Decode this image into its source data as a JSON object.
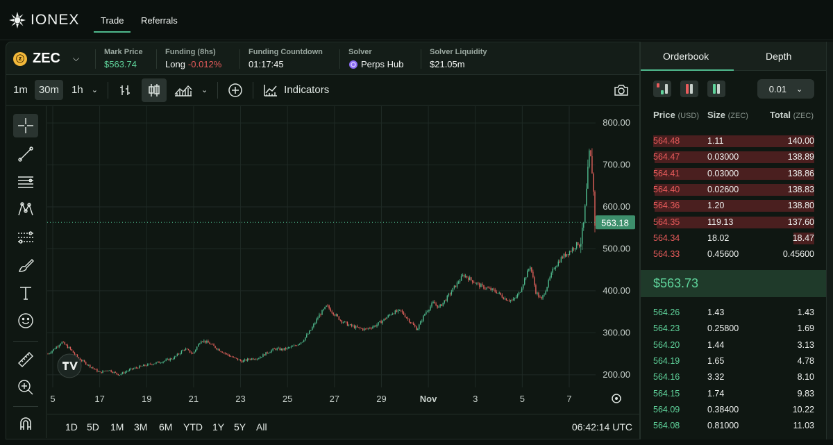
{
  "brand": {
    "name": "IONEX"
  },
  "nav": {
    "tabs": [
      {
        "label": "Trade"
      },
      {
        "label": "Referrals"
      }
    ]
  },
  "market": {
    "symbol": "ZEC",
    "icon": "zcash-coin-icon",
    "mark_price": {
      "label": "Mark Price",
      "value": "$563.74"
    },
    "funding": {
      "label": "Funding (8hs)",
      "side": "Long",
      "rate": "-0.012%"
    },
    "countdown": {
      "label": "Funding Countdown",
      "value": "01:17:45"
    },
    "solver": {
      "label": "Solver",
      "value": "Perps Hub"
    },
    "liquidity": {
      "label": "Solver Liquidity",
      "value": "$21.05m"
    }
  },
  "toolbar": {
    "intervals": [
      "1m",
      "30m",
      "1h"
    ],
    "selected_interval": "30m",
    "indicators_label": "Indicators",
    "icons": [
      "bar-chart-icon",
      "candlestick-icon",
      "area-chart-icon",
      "add-compare-icon",
      "indicators-icon",
      "camera-icon"
    ]
  },
  "drawing_tools": [
    "crosshair-icon",
    "trend-line-icon",
    "horizontal-lines-icon",
    "pattern-icon",
    "fib-icon",
    "brush-icon",
    "text-icon",
    "emoji-icon",
    "ruler-icon",
    "zoom-in-icon",
    "magnet-icon"
  ],
  "chart_data": {
    "type": "candlestick",
    "title": "",
    "y_ticks": [
      "800.00",
      "700.00",
      "600.00",
      "500.00",
      "400.00",
      "300.00",
      "200.00"
    ],
    "ylim": [
      160,
      830
    ],
    "x_ticks": [
      "5",
      "17",
      "19",
      "21",
      "23",
      "25",
      "27",
      "29",
      "Nov",
      "3",
      "5",
      "7"
    ],
    "last_price_label": "563.18",
    "last_price": 563.18,
    "grid": true,
    "trend_points": [
      [
        0,
        250
      ],
      [
        0.01,
        260
      ],
      [
        0.025,
        278
      ],
      [
        0.04,
        262
      ],
      [
        0.055,
        240
      ],
      [
        0.075,
        222
      ],
      [
        0.095,
        205
      ],
      [
        0.11,
        212
      ],
      [
        0.13,
        200
      ],
      [
        0.15,
        212
      ],
      [
        0.17,
        220
      ],
      [
        0.19,
        226
      ],
      [
        0.21,
        232
      ],
      [
        0.23,
        240
      ],
      [
        0.25,
        262
      ],
      [
        0.265,
        250
      ],
      [
        0.28,
        283
      ],
      [
        0.295,
        275
      ],
      [
        0.31,
        262
      ],
      [
        0.325,
        250
      ],
      [
        0.34,
        240
      ],
      [
        0.355,
        232
      ],
      [
        0.37,
        238
      ],
      [
        0.385,
        240
      ],
      [
        0.4,
        252
      ],
      [
        0.415,
        262
      ],
      [
        0.43,
        260
      ],
      [
        0.45,
        268
      ],
      [
        0.465,
        280
      ],
      [
        0.48,
        305
      ],
      [
        0.495,
        340
      ],
      [
        0.51,
        364
      ],
      [
        0.52,
        350
      ],
      [
        0.535,
        330
      ],
      [
        0.55,
        318
      ],
      [
        0.565,
        312
      ],
      [
        0.58,
        308
      ],
      [
        0.6,
        318
      ],
      [
        0.615,
        332
      ],
      [
        0.63,
        348
      ],
      [
        0.645,
        352
      ],
      [
        0.66,
        330
      ],
      [
        0.675,
        308
      ],
      [
        0.69,
        348
      ],
      [
        0.705,
        372
      ],
      [
        0.715,
        360
      ],
      [
        0.73,
        384
      ],
      [
        0.745,
        412
      ],
      [
        0.76,
        438
      ],
      [
        0.775,
        425
      ],
      [
        0.79,
        412
      ],
      [
        0.805,
        405
      ],
      [
        0.82,
        398
      ],
      [
        0.835,
        382
      ],
      [
        0.85,
        376
      ],
      [
        0.862,
        395
      ],
      [
        0.872,
        430
      ],
      [
        0.882,
        460
      ],
      [
        0.892,
        398
      ],
      [
        0.902,
        378
      ],
      [
        0.912,
        410
      ],
      [
        0.925,
        455
      ],
      [
        0.94,
        480
      ],
      [
        0.955,
        495
      ],
      [
        0.965,
        508
      ],
      [
        0.975,
        520
      ],
      [
        0.98,
        560
      ],
      [
        0.985,
        640
      ],
      [
        0.99,
        725
      ],
      [
        0.995,
        690
      ],
      [
        0.998,
        620
      ],
      [
        1.0,
        563
      ]
    ]
  },
  "bottombar": {
    "ranges": [
      "1D",
      "5D",
      "1M",
      "3M",
      "6M",
      "YTD",
      "1Y",
      "5Y",
      "All"
    ],
    "clock": "06:42:14 UTC"
  },
  "orderbook": {
    "tabs": [
      "Orderbook",
      "Depth"
    ],
    "tick_size": "0.01",
    "headers": {
      "price": "Price",
      "price_unit": "(USD)",
      "size": "Size",
      "size_unit": "(ZEC)",
      "total": "Total",
      "total_unit": "(ZEC)"
    },
    "colors": {
      "ask": "#e85b5b",
      "bid": "#5fd39b"
    },
    "asks": [
      {
        "price": "564.48",
        "size": "1.11",
        "total": "140.00",
        "depth": 1.0
      },
      {
        "price": "564.47",
        "size": "0.03000",
        "total": "138.89",
        "depth": 0.99
      },
      {
        "price": "564.41",
        "size": "0.03000",
        "total": "138.86",
        "depth": 0.99
      },
      {
        "price": "564.40",
        "size": "0.02600",
        "total": "138.83",
        "depth": 0.99
      },
      {
        "price": "564.36",
        "size": "1.20",
        "total": "138.80",
        "depth": 0.99
      },
      {
        "price": "564.35",
        "size": "119.13",
        "total": "137.60",
        "depth": 0.98
      },
      {
        "price": "564.34",
        "size": "18.02",
        "total": "18.47",
        "depth": 0.13
      },
      {
        "price": "564.33",
        "size": "0.45600",
        "total": "0.45600",
        "depth": 0.0
      }
    ],
    "mid_price": "$563.73",
    "bids": [
      {
        "price": "564.26",
        "size": "1.43",
        "total": "1.43"
      },
      {
        "price": "564.23",
        "size": "0.25800",
        "total": "1.69"
      },
      {
        "price": "564.20",
        "size": "1.44",
        "total": "3.13"
      },
      {
        "price": "564.19",
        "size": "1.65",
        "total": "4.78"
      },
      {
        "price": "564.16",
        "size": "3.32",
        "total": "8.10"
      },
      {
        "price": "564.15",
        "size": "1.74",
        "total": "9.83"
      },
      {
        "price": "564.09",
        "size": "0.38400",
        "total": "10.22"
      },
      {
        "price": "564.08",
        "size": "0.81000",
        "total": "11.03"
      }
    ]
  }
}
